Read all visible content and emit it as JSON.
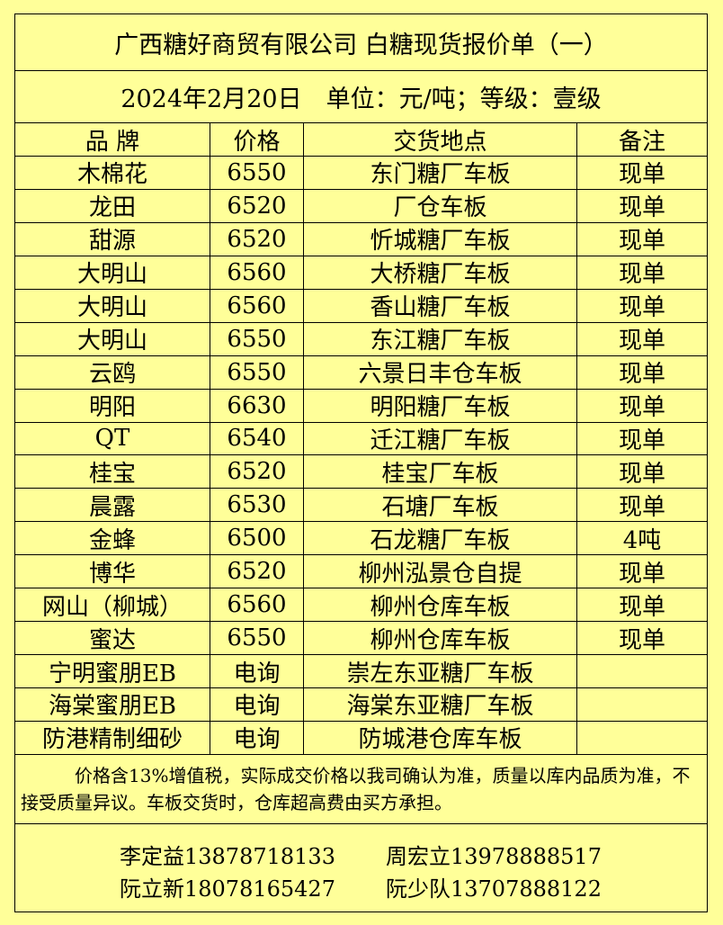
{
  "title": "广西糖好商贸有限公司 白糖现货报价单（一）",
  "subtitle": "2024年2月20日　单位：元/吨；等级：壹级",
  "headers": [
    "品 牌",
    "价格",
    "交货地点",
    "备注"
  ],
  "rows": [
    [
      "木棉花",
      "6550",
      "东门糖厂车板",
      "现单"
    ],
    [
      "龙田",
      "6520",
      "厂仓车板",
      "现单"
    ],
    [
      "甜源",
      "6520",
      "忻城糖厂车板",
      "现单"
    ],
    [
      "大明山",
      "6560",
      "大桥糖厂车板",
      "现单"
    ],
    [
      "大明山",
      "6560",
      "香山糖厂车板",
      "现单"
    ],
    [
      "大明山",
      "6550",
      "东江糖厂车板",
      "现单"
    ],
    [
      "云鸥",
      "6550",
      "六景日丰仓车板",
      "现单"
    ],
    [
      "明阳",
      "6630",
      "明阳糖厂车板",
      "现单"
    ],
    [
      "QT",
      "6540",
      "迁江糖厂车板",
      "现单"
    ],
    [
      "桂宝",
      "6520",
      "桂宝厂车板",
      "现单"
    ],
    [
      "晨露",
      "6530",
      "石塘厂车板",
      "现单"
    ],
    [
      "金蜂",
      "6500",
      "石龙糖厂车板",
      "4吨"
    ],
    [
      "博华",
      "6520",
      "柳州泓景仓自提",
      "现单"
    ],
    [
      "网山（柳城）",
      "6560",
      "柳州仓库车板",
      "现单"
    ],
    [
      "蜜达",
      "6550",
      "柳州仓库车板",
      "现单"
    ],
    [
      "宁明蜜朋EB",
      "电询",
      "崇左东亚糖厂车板",
      ""
    ],
    [
      "海棠蜜朋EB",
      "电询",
      "海棠东亚糖厂车板",
      ""
    ],
    [
      "防港精制细砂",
      "电询",
      "防城港仓库车板",
      ""
    ]
  ],
  "notes": "价格含13%增值税，实际成交价格以我司确认为准，质量以库内品质为准，不接受质量异议。车板交货时，仓库超高费由买方承担。",
  "contacts": [
    [
      "李定益13878718133",
      "周宏立13978888517"
    ],
    [
      "阮立新18078165427",
      "阮少队13707888122"
    ]
  ],
  "colors": {
    "background": "#ffff99",
    "border": "#000000"
  }
}
